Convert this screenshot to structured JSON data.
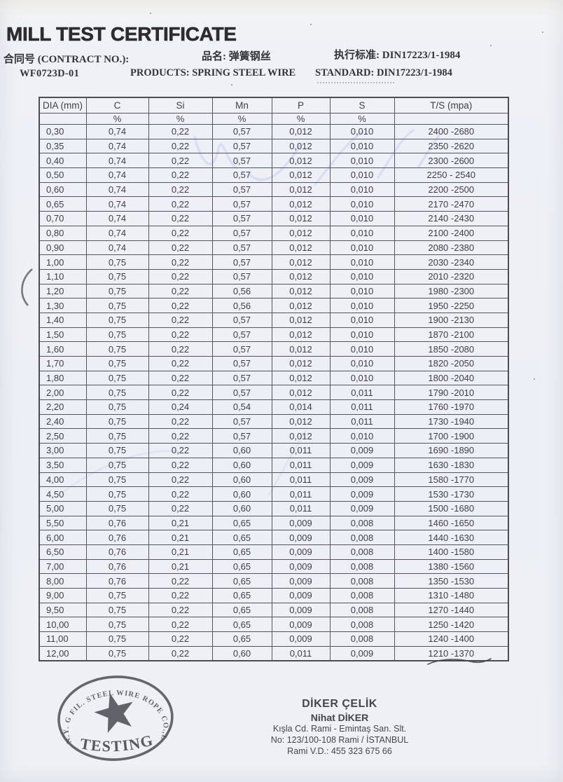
{
  "title": "MILL TEST CERTIFICATE",
  "header": {
    "contract_label": "合同号 (CONTRACT NO.):",
    "contract_no": "WF0723D-01",
    "product_label_cn": "品名: 弹簧钢丝",
    "products_label": "PRODUCTS: SPRING STEEL WIRE",
    "standard_label_cn": "执行标准: DIN17223/1-1984",
    "standard_label": "STANDARD: DIN17223/1-1984"
  },
  "table": {
    "columns": [
      "DIA (mm)",
      "C",
      "Si",
      "Mn",
      "P",
      "S",
      "T/S (mpa)"
    ],
    "units": [
      "",
      "%",
      "%",
      "%",
      "%",
      "%",
      ""
    ],
    "rows": [
      [
        "0,30",
        "0,74",
        "0,22",
        "0,57",
        "0,012",
        "0,010",
        "2400 -2680"
      ],
      [
        "0,35",
        "0,74",
        "0,22",
        "0,57",
        "0,012",
        "0,010",
        "2350 -2620"
      ],
      [
        "0,40",
        "0,74",
        "0,22",
        "0,57",
        "0,012",
        "0,010",
        "2300 -2600"
      ],
      [
        "0,50",
        "0,74",
        "0,22",
        "0,57",
        "0,012",
        "0,010",
        "2250 - 2540"
      ],
      [
        "0,60",
        "0,74",
        "0,22",
        "0,57",
        "0,012",
        "0,010",
        "2200 -2500"
      ],
      [
        "0,65",
        "0,74",
        "0,22",
        "0,57",
        "0,012",
        "0,010",
        "2170 -2470"
      ],
      [
        "0,70",
        "0,74",
        "0,22",
        "0,57",
        "0,012",
        "0,010",
        "2140 -2430"
      ],
      [
        "0,80",
        "0,74",
        "0,22",
        "0,57",
        "0,012",
        "0,010",
        "2100 -2400"
      ],
      [
        "0,90",
        "0,74",
        "0,22",
        "0,57",
        "0,012",
        "0,010",
        "2080 -2380"
      ],
      [
        "1,00",
        "0,75",
        "0,22",
        "0,57",
        "0,012",
        "0,010",
        "2030 -2340"
      ],
      [
        "1,10",
        "0,75",
        "0,22",
        "0,57",
        "0,012",
        "0,010",
        "2010 -2320"
      ],
      [
        "1,20",
        "0,75",
        "0,22",
        "0,56",
        "0,012",
        "0,010",
        "1980 -2300"
      ],
      [
        "1,30",
        "0,75",
        "0,22",
        "0,56",
        "0,012",
        "0,010",
        "1950 -2250"
      ],
      [
        "1,40",
        "0,75",
        "0,22",
        "0,57",
        "0,012",
        "0,010",
        "1900 -2130"
      ],
      [
        "1,50",
        "0,75",
        "0,22",
        "0,57",
        "0,012",
        "0,010",
        "1870 -2100"
      ],
      [
        "1,60",
        "0,75",
        "0,22",
        "0,57",
        "0,012",
        "0,010",
        "1850 -2080"
      ],
      [
        "1,70",
        "0,75",
        "0,22",
        "0,57",
        "0,012",
        "0,010",
        "1820 -2050"
      ],
      [
        "1,80",
        "0,75",
        "0,22",
        "0,57",
        "0,012",
        "0,010",
        "1800 -2040"
      ],
      [
        "2,00",
        "0,75",
        "0,22",
        "0,57",
        "0,012",
        "0,011",
        "1790 -2010"
      ],
      [
        "2,20",
        "0,75",
        "0,24",
        "0,54",
        "0,014",
        "0,011",
        "1760 -1970"
      ],
      [
        "2,40",
        "0,75",
        "0,22",
        "0,57",
        "0,012",
        "0,011",
        "1730 -1940"
      ],
      [
        "2,50",
        "0,75",
        "0,22",
        "0,57",
        "0,012",
        "0,010",
        "1700 -1900"
      ],
      [
        "3,00",
        "0,75",
        "0,22",
        "0,60",
        "0,011",
        "0,009",
        "1690 -1890"
      ],
      [
        "3,50",
        "0,75",
        "0,22",
        "0,60",
        "0,011",
        "0,009",
        "1630 -1830"
      ],
      [
        "4,00",
        "0,75",
        "0,22",
        "0,60",
        "0,011",
        "0,009",
        "1580 -1770"
      ],
      [
        "4,50",
        "0,75",
        "0,22",
        "0,60",
        "0,011",
        "0,009",
        "1530 -1730"
      ],
      [
        "5,00",
        "0,75",
        "0,22",
        "0,60",
        "0,011",
        "0,009",
        "1500 -1680"
      ],
      [
        "5,50",
        "0,76",
        "0,21",
        "0,65",
        "0,009",
        "0,008",
        "1460 -1650"
      ],
      [
        "6,00",
        "0,76",
        "0,21",
        "0,65",
        "0,009",
        "0,008",
        "1440 -1630"
      ],
      [
        "6,50",
        "0,76",
        "0,21",
        "0,65",
        "0,009",
        "0,008",
        "1400 -1580"
      ],
      [
        "7,00",
        "0,76",
        "0,21",
        "0,65",
        "0,009",
        "0,008",
        "1380 -1560"
      ],
      [
        "8,00",
        "0,76",
        "0,22",
        "0,65",
        "0,009",
        "0,008",
        "1350 -1530"
      ],
      [
        "9,00",
        "0,75",
        "0,22",
        "0,65",
        "0,009",
        "0,008",
        "1310 -1480"
      ],
      [
        "9,50",
        "0,75",
        "0,22",
        "0,65",
        "0,009",
        "0,008",
        "1270 -1440"
      ],
      [
        "10,00",
        "0,75",
        "0,22",
        "0,65",
        "0,009",
        "0,008",
        "1250 -1420"
      ],
      [
        "11,00",
        "0,75",
        "0,22",
        "0,65",
        "0,009",
        "0,008",
        "1240 -1400"
      ],
      [
        "12,00",
        "0,75",
        "0,22",
        "0,60",
        "0,011",
        "0,009",
        "1210 -1370"
      ]
    ]
  },
  "stamp": {
    "arc_text": "N.Y. G FIL. STEEL WIRE ROPE CO.,LTD.",
    "bottom_text": "TESTING",
    "star_icon": "star-icon",
    "ink_color": "#4a4a52"
  },
  "footer": {
    "company": "DİKER ÇELİK",
    "person": "Nihat DİKER",
    "address_line1": "Kışla Cd. Rami - Emintaş San. Slt.",
    "address_line2": "No: 123/100-108  Rami / İSTANBUL",
    "tax_line": "Rami V.D.: 455 323 675 66"
  }
}
